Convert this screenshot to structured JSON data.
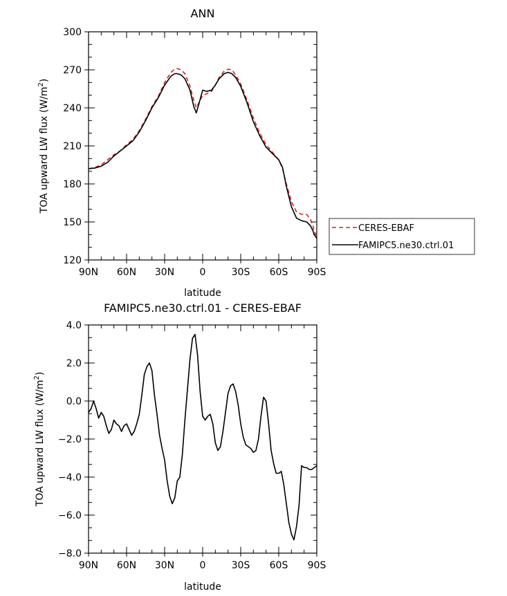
{
  "chart_data": [
    {
      "type": "line",
      "title": "ANN",
      "xlabel": "latitude",
      "ylabel": "TOA upward LW flux (W/m",
      "ylabel_sup": "2",
      "ylabel_end": ")",
      "xlim": [
        90,
        -90
      ],
      "ylim": [
        120,
        300
      ],
      "xticks": [
        90,
        60,
        30,
        0,
        -30,
        -60,
        -90
      ],
      "xtick_labels": [
        "90N",
        "60N",
        "30N",
        "0",
        "30S",
        "60S",
        "90S"
      ],
      "yticks": [
        120,
        150,
        180,
        210,
        240,
        270,
        300
      ],
      "ytick_labels": [
        "120",
        "150",
        "180",
        "210",
        "240",
        "270",
        "300"
      ],
      "legend_position": "right",
      "series": [
        {
          "name": "CERES-EBAF",
          "color": "#d62020",
          "dash": "dashed",
          "x": [
            90,
            85,
            80,
            75,
            70,
            65,
            60,
            55,
            50,
            45,
            40,
            35,
            30,
            25,
            22,
            20,
            17,
            14,
            10,
            7,
            5,
            3,
            0,
            -3,
            -7,
            -10,
            -13,
            -17,
            -20,
            -23,
            -26,
            -30,
            -35,
            -40,
            -45,
            -50,
            -55,
            -60,
            -63,
            -66,
            -70,
            -74,
            -78,
            -82,
            -85,
            -87,
            -88,
            -90
          ],
          "y": [
            192,
            193,
            195,
            199,
            203,
            206,
            211,
            215,
            222,
            231,
            241,
            249,
            260,
            268,
            270.5,
            271,
            270,
            267,
            257,
            246,
            240,
            244,
            250,
            251,
            253,
            258,
            264,
            269,
            270.5,
            270,
            266,
            259,
            246,
            232,
            220,
            211,
            205,
            199,
            192,
            180,
            166,
            158,
            156,
            156,
            152,
            147,
            142,
            140
          ]
        },
        {
          "name": "FAMIPC5.ne30.ctrl.01",
          "color": "#000000",
          "dash": "solid",
          "x": [
            90,
            85,
            80,
            75,
            70,
            65,
            60,
            55,
            50,
            45,
            40,
            35,
            30,
            25,
            22,
            20,
            17,
            14,
            10,
            7,
            5,
            3,
            0,
            -3,
            -7,
            -10,
            -13,
            -17,
            -20,
            -23,
            -26,
            -30,
            -35,
            -40,
            -45,
            -50,
            -55,
            -60,
            -63,
            -66,
            -70,
            -74,
            -78,
            -82,
            -85,
            -87,
            -88,
            -90
          ],
          "y": [
            192,
            192.5,
            194,
            197,
            202,
            206,
            210,
            214,
            221,
            230,
            240,
            248,
            258,
            265,
            267,
            267,
            266,
            263,
            254,
            241,
            236,
            243,
            254,
            253,
            254,
            258,
            263,
            267,
            268,
            267,
            264,
            257,
            244,
            229,
            218,
            209,
            204,
            199,
            193,
            178,
            162,
            153,
            151,
            150,
            147,
            143,
            140,
            137
          ]
        }
      ]
    },
    {
      "type": "line",
      "title": "FAMIPC5.ne30.ctrl.01 - CERES-EBAF",
      "xlabel": "latitude",
      "ylabel": "TOA upward LW flux (W/m",
      "ylabel_sup": "2",
      "ylabel_end": ")",
      "xlim": [
        90,
        -90
      ],
      "ylim": [
        -8,
        4
      ],
      "xticks": [
        90,
        60,
        30,
        0,
        -30,
        -60,
        -90
      ],
      "xtick_labels": [
        "90N",
        "60N",
        "30N",
        "0",
        "30S",
        "60S",
        "90S"
      ],
      "yticks": [
        -8,
        -6,
        -4,
        -2,
        0,
        2,
        4
      ],
      "ytick_labels": [
        "−8.0",
        "−6.0",
        "−4.0",
        "−2.0",
        "0.0",
        "2.0",
        "4.0"
      ],
      "series": [
        {
          "color": "#000000",
          "dash": "solid",
          "x": [
            90,
            88,
            86,
            84,
            82,
            80,
            78,
            76,
            74,
            72,
            70,
            68,
            66,
            64,
            62,
            60,
            58,
            56,
            54,
            52,
            50,
            48,
            46,
            44,
            42,
            40,
            38,
            36,
            34,
            32,
            30,
            28,
            26,
            24,
            22,
            20,
            18,
            16,
            14,
            12,
            10,
            8,
            6,
            4,
            2,
            0,
            -2,
            -4,
            -6,
            -8,
            -10,
            -12,
            -14,
            -16,
            -18,
            -20,
            -22,
            -24,
            -26,
            -28,
            -30,
            -32,
            -34,
            -36,
            -38,
            -40,
            -42,
            -44,
            -46,
            -48,
            -50,
            -52,
            -54,
            -56,
            -58,
            -60,
            -62,
            -64,
            -66,
            -68,
            -70,
            -72,
            -74,
            -76,
            -78,
            -80,
            -82,
            -84,
            -86,
            -88,
            -90
          ],
          "y": [
            -0.6,
            -0.4,
            0.0,
            -0.4,
            -0.9,
            -0.6,
            -0.8,
            -1.3,
            -1.7,
            -1.5,
            -1.0,
            -1.2,
            -1.3,
            -1.6,
            -1.3,
            -1.2,
            -1.5,
            -1.8,
            -1.6,
            -1.2,
            -0.7,
            0.3,
            1.4,
            1.8,
            2.0,
            1.6,
            0.3,
            -0.7,
            -1.8,
            -2.5,
            -3.1,
            -4.2,
            -5.0,
            -5.4,
            -5.1,
            -4.2,
            -4.0,
            -2.8,
            -1.0,
            0.6,
            2.2,
            3.3,
            3.5,
            2.4,
            0.5,
            -0.8,
            -1.0,
            -0.8,
            -0.7,
            -1.2,
            -2.2,
            -2.6,
            -2.4,
            -1.6,
            -0.6,
            0.4,
            0.8,
            0.9,
            0.5,
            -0.2,
            -1.2,
            -1.9,
            -2.3,
            -2.4,
            -2.5,
            -2.7,
            -2.6,
            -2.0,
            -0.8,
            0.2,
            0.0,
            -1.2,
            -2.6,
            -3.3,
            -3.8,
            -3.8,
            -3.7,
            -4.4,
            -5.4,
            -6.4,
            -7.0,
            -7.3,
            -6.6,
            -5.5,
            -3.4,
            -3.5,
            -3.5,
            -3.6,
            -3.6,
            -3.5,
            -3.4
          ]
        }
      ]
    }
  ]
}
